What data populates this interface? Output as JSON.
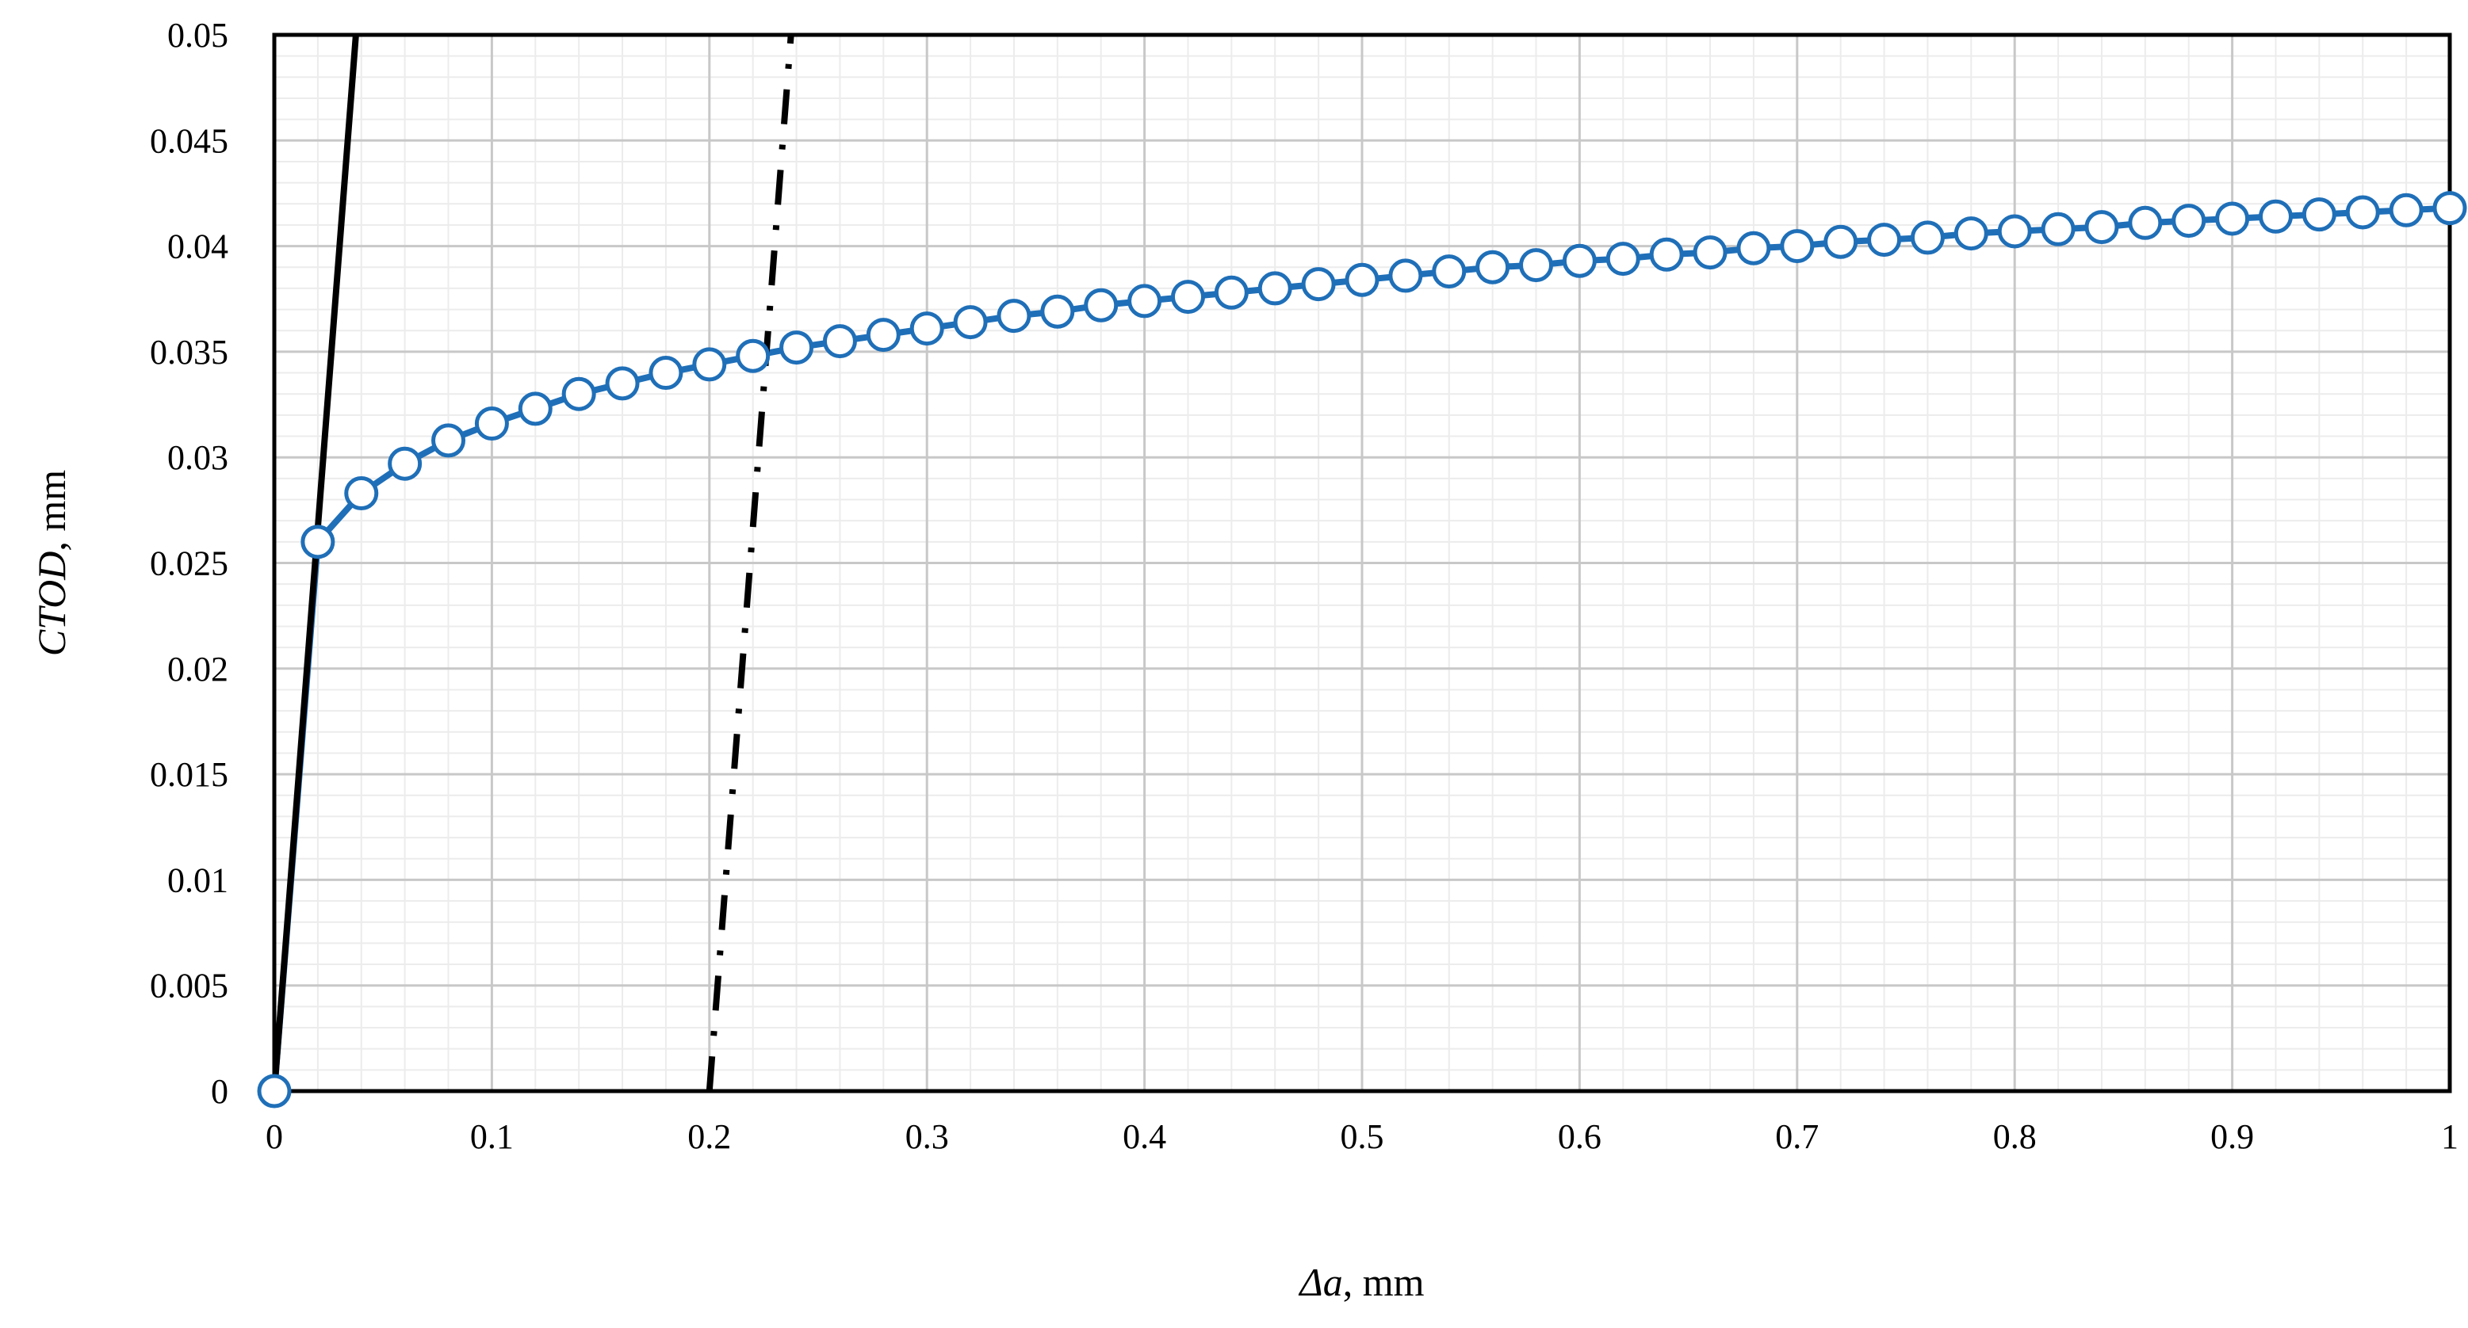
{
  "chart_data": {
    "type": "scatter",
    "title": "",
    "xlabel": {
      "italic": "Δa",
      "rest": ", mm"
    },
    "ylabel": {
      "italic": "CTOD",
      "rest": ", mm"
    },
    "xlim": [
      0,
      1
    ],
    "ylim": [
      0,
      0.05
    ],
    "x_ticks": [
      "0",
      "0.1",
      "0.2",
      "0.3",
      "0.4",
      "0.5",
      "0.6",
      "0.7",
      "0.8",
      "0.9",
      "1"
    ],
    "y_ticks": [
      "0",
      "0.005",
      "0.01",
      "0.015",
      "0.02",
      "0.025",
      "0.03",
      "0.035",
      "0.04",
      "0.045",
      "0.05"
    ],
    "x_tick_values": [
      0,
      0.1,
      0.2,
      0.3,
      0.4,
      0.5,
      0.6,
      0.7,
      0.8,
      0.9,
      1
    ],
    "y_tick_values": [
      0,
      0.005,
      0.01,
      0.015,
      0.02,
      0.025,
      0.03,
      0.035,
      0.04,
      0.045,
      0.05
    ],
    "grid": {
      "major": true,
      "minor": true,
      "minor_per_major": 5
    },
    "legend": "none",
    "series": [
      {
        "style": "line-markers",
        "color": "#1f6fb8",
        "marker_fill": "#ffffff",
        "x": [
          0,
          0.02,
          0.04,
          0.06,
          0.08,
          0.1,
          0.12,
          0.14,
          0.16,
          0.18,
          0.2,
          0.22,
          0.24,
          0.26,
          0.28,
          0.3,
          0.32,
          0.34,
          0.36,
          0.38,
          0.4,
          0.42,
          0.44,
          0.46,
          0.48,
          0.5,
          0.52,
          0.54,
          0.56,
          0.58,
          0.6,
          0.62,
          0.64,
          0.66,
          0.68,
          0.7,
          0.72,
          0.74,
          0.76,
          0.78,
          0.8,
          0.82,
          0.84,
          0.86,
          0.88,
          0.9,
          0.92,
          0.94,
          0.96,
          0.98,
          1.0
        ],
        "y": [
          0,
          0.026,
          0.0283,
          0.0297,
          0.0308,
          0.0316,
          0.0323,
          0.033,
          0.0335,
          0.034,
          0.0344,
          0.0348,
          0.0352,
          0.0355,
          0.0358,
          0.0361,
          0.0364,
          0.0367,
          0.0369,
          0.0372,
          0.0374,
          0.0376,
          0.0378,
          0.038,
          0.0382,
          0.0384,
          0.0386,
          0.0388,
          0.039,
          0.0391,
          0.0393,
          0.0394,
          0.0396,
          0.0397,
          0.0399,
          0.04,
          0.0402,
          0.0403,
          0.0404,
          0.0406,
          0.0407,
          0.0408,
          0.0409,
          0.0411,
          0.0412,
          0.0413,
          0.0414,
          0.0415,
          0.0416,
          0.0417,
          0.0418
        ]
      },
      {
        "style": "solid",
        "color": "#000000",
        "x": [
          0,
          0.0375
        ],
        "y": [
          0,
          0.05
        ]
      },
      {
        "style": "dash-dot",
        "color": "#000000",
        "x": [
          0.2,
          0.2375
        ],
        "y": [
          0,
          0.05
        ]
      }
    ]
  }
}
